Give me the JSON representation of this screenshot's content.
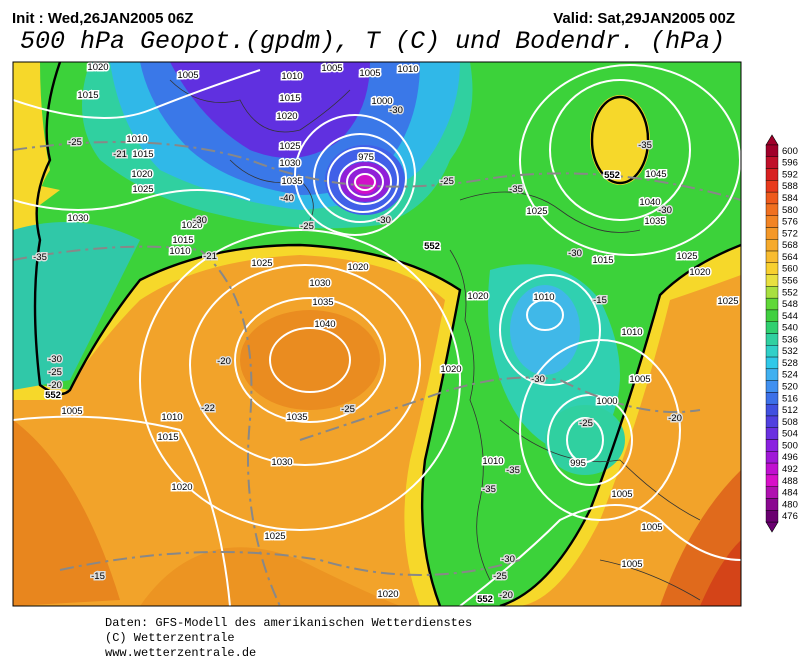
{
  "header": {
    "init": "Init : Wed,26JAN2005 06Z",
    "valid": "Valid: Sat,29JAN2005 00Z",
    "title": "500 hPa Geopot.(gpdm), T (C) und Bodendr. (hPa)"
  },
  "colorbar": {
    "labels": [
      600,
      596,
      592,
      588,
      584,
      580,
      576,
      572,
      568,
      564,
      560,
      556,
      552,
      548,
      544,
      540,
      536,
      532,
      528,
      524,
      520,
      516,
      512,
      508,
      504,
      500,
      496,
      492,
      488,
      484,
      480,
      476
    ]
  },
  "map": {
    "isobar_labels": [
      "1020",
      "1005",
      "1010",
      "1005",
      "1005",
      "1010",
      "1015",
      "1015",
      "1020",
      "1000",
      "1010",
      "1015",
      "1025",
      "1020",
      "1030",
      "975",
      "1035",
      "1025",
      "1045",
      "1040",
      "1030",
      "1035",
      "1025",
      "1020",
      "1015",
      "1010",
      "1025",
      "1020",
      "1015",
      "1025",
      "1030",
      "1020",
      "1020",
      "1035",
      "1020",
      "1010",
      "1025",
      "1040",
      "1010",
      "1020",
      "1005",
      "1005",
      "1010",
      "1035",
      "1000",
      "1015",
      "995",
      "1030",
      "1010",
      "1020",
      "1005",
      "1025",
      "1005",
      "1005",
      "1020"
    ],
    "temperature_labels": [
      "-25",
      "-21",
      "-35",
      "-21",
      "-30",
      "-40",
      "-25",
      "-30",
      "-25",
      "-35",
      "-35",
      "-30",
      "-30",
      "-15",
      "-30",
      "-25",
      "-20",
      "-20",
      "-22",
      "-25",
      "-30",
      "-25",
      "-20",
      "-35",
      "-35",
      "-30",
      "-25",
      "-20",
      "-15",
      "-30"
    ],
    "contour_labels": [
      "552",
      "552",
      "552",
      "552"
    ]
  },
  "footer": [
    "Daten: GFS-Modell des amerikanischen Wetterdienstes",
    "(C) Wetterzentrale",
    "www.wetterzentrale.de"
  ]
}
